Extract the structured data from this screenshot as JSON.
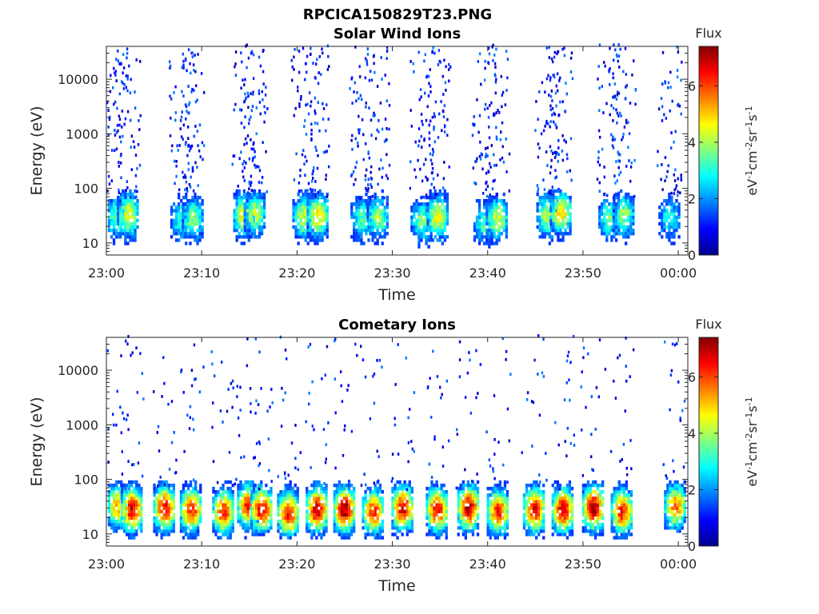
{
  "figure": {
    "title": "RPCICA150829T23.PNG"
  },
  "colors": {
    "colormap": [
      "#00008f",
      "#0000ff",
      "#0080ff",
      "#00ffff",
      "#80ff80",
      "#ffff00",
      "#ff8000",
      "#ff0000",
      "#800000"
    ],
    "axis": "#262626",
    "background": "#ffffff"
  },
  "chart_data": [
    {
      "type": "heatmap",
      "title": "Solar Wind Ions",
      "xlabel": "Time",
      "ylabel": "Energy (eV)",
      "x_tick_labels": [
        "23:00",
        "23:10",
        "23:20",
        "23:30",
        "23:40",
        "23:50",
        "00:00"
      ],
      "x_range_minutes": [
        0,
        61
      ],
      "y_scale": "log",
      "y_tick_labels": [
        "10",
        "100",
        "1000",
        "10000"
      ],
      "y_tick_values": [
        10,
        100,
        1000,
        10000
      ],
      "y_range": [
        6,
        40000
      ],
      "colorbar": {
        "title": "Flux",
        "label_parts": [
          "eV",
          "-1",
          "cm",
          "-2",
          "sr",
          "-1",
          "s",
          "-1"
        ],
        "range": [
          0,
          7.4
        ],
        "tick_labels": [
          "0",
          "2",
          "4",
          "6"
        ],
        "tick_values": [
          0,
          2,
          4,
          6
        ]
      },
      "bursts": [
        {
          "t": 1.0,
          "e_peak": 28,
          "flux_peak": 3.6
        },
        {
          "t": 2.2,
          "e_peak": 30,
          "flux_peak": 4.6
        },
        {
          "t": 7.8,
          "e_peak": 25,
          "flux_peak": 3.2
        },
        {
          "t": 9.0,
          "e_peak": 26,
          "flux_peak": 3.8
        },
        {
          "t": 14.4,
          "e_peak": 30,
          "flux_peak": 4.8
        },
        {
          "t": 15.5,
          "e_peak": 32,
          "flux_peak": 4.2
        },
        {
          "t": 20.6,
          "e_peak": 28,
          "flux_peak": 4.4
        },
        {
          "t": 22.1,
          "e_peak": 30,
          "flux_peak": 4.9
        },
        {
          "t": 26.7,
          "e_peak": 26,
          "flux_peak": 3.4
        },
        {
          "t": 28.4,
          "e_peak": 28,
          "flux_peak": 3.9
        },
        {
          "t": 33.0,
          "e_peak": 24,
          "flux_peak": 3.6
        },
        {
          "t": 34.7,
          "e_peak": 28,
          "flux_peak": 4.7
        },
        {
          "t": 39.6,
          "e_peak": 22,
          "flux_peak": 3.3
        },
        {
          "t": 40.9,
          "e_peak": 26,
          "flux_peak": 4.3
        },
        {
          "t": 46.2,
          "e_peak": 30,
          "flux_peak": 4.2
        },
        {
          "t": 47.6,
          "e_peak": 34,
          "flux_peak": 4.9
        },
        {
          "t": 52.7,
          "e_peak": 26,
          "flux_peak": 3.5
        },
        {
          "t": 54.2,
          "e_peak": 30,
          "flux_peak": 3.9
        },
        {
          "t": 59.0,
          "e_peak": 26,
          "flux_peak": 3.0
        }
      ]
    },
    {
      "type": "heatmap",
      "title": "Cometary Ions",
      "xlabel": "Time",
      "ylabel": "Energy (eV)",
      "x_tick_labels": [
        "23:00",
        "23:10",
        "23:20",
        "23:30",
        "23:40",
        "23:50",
        "00:00"
      ],
      "x_range_minutes": [
        0,
        61
      ],
      "y_scale": "log",
      "y_tick_labels": [
        "10",
        "100",
        "1000",
        "10000"
      ],
      "y_tick_values": [
        10,
        100,
        1000,
        10000
      ],
      "y_range": [
        6,
        40000
      ],
      "colorbar": {
        "title": "Flux",
        "label_parts": [
          "eV",
          "-1",
          "cm",
          "-2",
          "sr",
          "-1",
          "s",
          "-1"
        ],
        "range": [
          0,
          7.4
        ],
        "tick_labels": [
          "0",
          "2",
          "4",
          "6"
        ],
        "tick_values": [
          0,
          2,
          4,
          6
        ]
      },
      "bursts": [
        {
          "t": 1.0,
          "e_peak": 30,
          "flux_peak": 5.2
        },
        {
          "t": 2.6,
          "e_peak": 26,
          "flux_peak": 6.8
        },
        {
          "t": 6.0,
          "e_peak": 28,
          "flux_peak": 6.6
        },
        {
          "t": 8.8,
          "e_peak": 26,
          "flux_peak": 6.3
        },
        {
          "t": 12.2,
          "e_peak": 24,
          "flux_peak": 6.2
        },
        {
          "t": 14.8,
          "e_peak": 30,
          "flux_peak": 6.4
        },
        {
          "t": 16.2,
          "e_peak": 26,
          "flux_peak": 6.8
        },
        {
          "t": 19.0,
          "e_peak": 22,
          "flux_peak": 6.5
        },
        {
          "t": 22.0,
          "e_peak": 26,
          "flux_peak": 7.0
        },
        {
          "t": 24.9,
          "e_peak": 26,
          "flux_peak": 7.2
        },
        {
          "t": 27.9,
          "e_peak": 24,
          "flux_peak": 6.2
        },
        {
          "t": 31.0,
          "e_peak": 28,
          "flux_peak": 6.8
        },
        {
          "t": 34.6,
          "e_peak": 26,
          "flux_peak": 6.7
        },
        {
          "t": 37.9,
          "e_peak": 28,
          "flux_peak": 7.0
        },
        {
          "t": 41.0,
          "e_peak": 24,
          "flux_peak": 6.3
        },
        {
          "t": 44.8,
          "e_peak": 26,
          "flux_peak": 6.6
        },
        {
          "t": 47.8,
          "e_peak": 26,
          "flux_peak": 6.9
        },
        {
          "t": 51.0,
          "e_peak": 28,
          "flux_peak": 7.1
        },
        {
          "t": 54.0,
          "e_peak": 24,
          "flux_peak": 6.4
        },
        {
          "t": 59.6,
          "e_peak": 30,
          "flux_peak": 5.8
        }
      ]
    }
  ]
}
